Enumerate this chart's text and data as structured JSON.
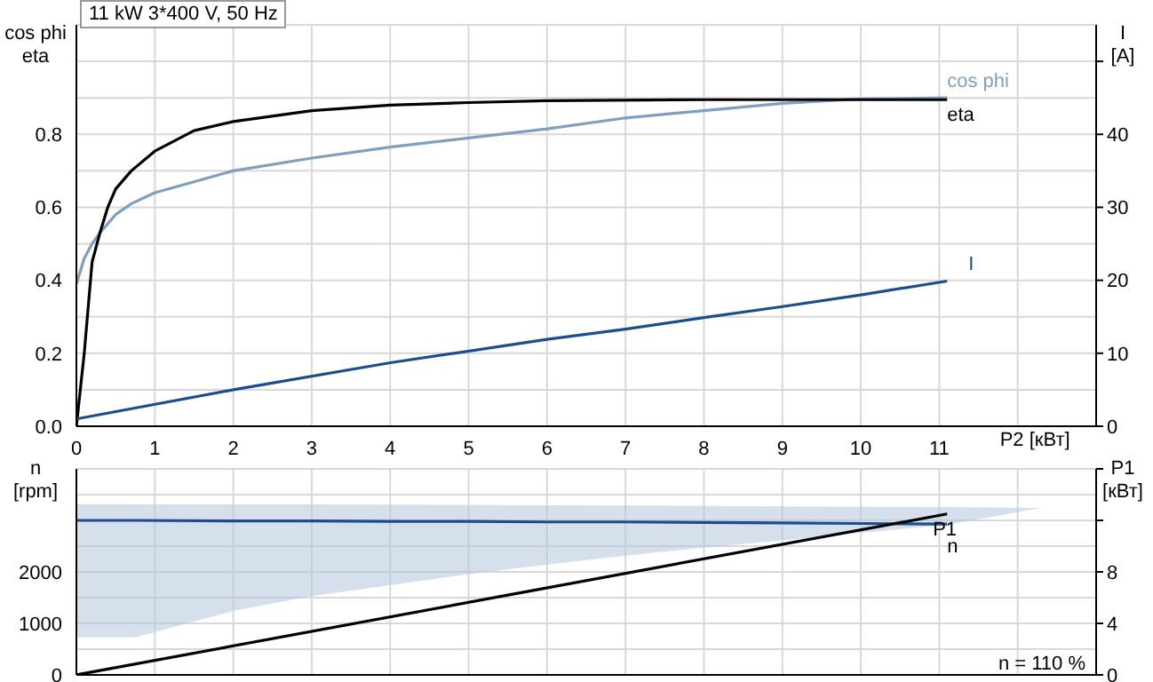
{
  "chart_data": [
    {
      "type": "line",
      "title": "11 kW  3*400 V, 50 Hz",
      "xlabel": "P2 [кВт]",
      "ylabel": "cos phi\neta",
      "y2label": "I\n[A]",
      "xlim": [
        0,
        13
      ],
      "xticks": [
        0,
        1,
        2,
        3,
        4,
        5,
        6,
        7,
        8,
        9,
        10,
        11,
        {
          "value": 12,
          "label": null
        }
      ],
      "ylim": [
        0,
        1.1
      ],
      "yticks": [
        {
          "value": 0,
          "label": "0.0"
        },
        {
          "value": 0.1,
          "label": null
        },
        {
          "value": 0.2,
          "label": "0.2"
        },
        {
          "value": 0.3,
          "label": null
        },
        {
          "value": 0.4,
          "label": "0.4"
        },
        {
          "value": 0.5,
          "label": null
        },
        {
          "value": 0.6,
          "label": "0.6"
        },
        {
          "value": 0.7,
          "label": null
        },
        {
          "value": 0.8,
          "label": "0.8"
        },
        {
          "value": 0.9,
          "label": null
        },
        {
          "value": 1.0,
          "label": null
        }
      ],
      "y2lim": [
        0,
        55
      ],
      "y2ticks": [
        0,
        10,
        20,
        30,
        40,
        {
          "value": 50,
          "label": null
        }
      ],
      "grid": true,
      "marker": "none",
      "line_style": "solid",
      "series": [
        {
          "name": "cos phi",
          "color": "#7f9fbf",
          "x": [
            0,
            0.1,
            0.2,
            0.3,
            0.5,
            0.7,
            1,
            1.5,
            2,
            3,
            4,
            5,
            6,
            7,
            8,
            9,
            10,
            11.1
          ],
          "values": [
            0.39,
            0.46,
            0.5,
            0.53,
            0.58,
            0.61,
            0.64,
            0.67,
            0.7,
            0.735,
            0.765,
            0.79,
            0.815,
            0.845,
            0.865,
            0.885,
            0.897,
            0.9
          ]
        },
        {
          "name": "eta",
          "color": "#000000",
          "x": [
            0,
            0.1,
            0.2,
            0.3,
            0.4,
            0.5,
            0.7,
            1,
            1.5,
            2,
            3,
            4,
            5,
            6,
            8,
            10,
            11.1
          ],
          "values": [
            0,
            0.2,
            0.45,
            0.53,
            0.6,
            0.65,
            0.7,
            0.754,
            0.81,
            0.835,
            0.865,
            0.88,
            0.887,
            0.892,
            0.895,
            0.895,
            0.895
          ]
        },
        {
          "name": "I",
          "color": "#1a4f8a",
          "axis": "y2",
          "x": [
            0,
            2,
            4,
            6,
            7,
            8,
            9,
            10,
            11.1
          ],
          "values": [
            1,
            5,
            8.7,
            11.9,
            13.3,
            14.9,
            16.4,
            18,
            19.9
          ]
        }
      ]
    },
    {
      "type": "line",
      "ylabel": "n\n[rpm]",
      "y2label": "P1\n[кВт]",
      "annotations": [
        "n = 110 %"
      ],
      "tick_labels": "y",
      "xlim": [
        0,
        13
      ],
      "xticks": [
        0,
        1,
        2,
        3,
        4,
        5,
        6,
        7,
        8,
        9,
        10,
        11,
        12
      ],
      "ylim": [
        0,
        4000
      ],
      "yticks": [
        0,
        {
          "value": 500,
          "label": null
        },
        1000,
        {
          "value": 1500,
          "label": null
        },
        2000,
        {
          "value": 2500,
          "label": null
        },
        {
          "value": 3000,
          "label": null
        },
        {
          "value": 3500,
          "label": null
        },
        {
          "value": 4000,
          "label": null
        }
      ],
      "y2lim": [
        0,
        16
      ],
      "y2ticks": [
        0,
        4,
        8,
        {
          "value": 12,
          "label": null
        },
        {
          "value": 16,
          "label": null
        }
      ],
      "grid": true,
      "marker": "none",
      "line_style": "solid",
      "series": [
        {
          "name": "n",
          "color": "#1a4f8a",
          "x": [
            0,
            0.75,
            2,
            3,
            4,
            5,
            6,
            7,
            8,
            9,
            10,
            11,
            11.1,
            12.3
          ],
          "values": [
            3000,
            3000,
            2990,
            2990,
            2980,
            2980,
            2970,
            2970,
            2960,
            2950,
            2940,
            2930,
            2930,
            null
          ],
          "lower": [
            730,
            730,
            1243,
            1529,
            1743,
            1957,
            2143,
            2314,
            2471,
            2614,
            2757,
            2900,
            2914,
            3243
          ],
          "upper": [
            3314,
            3314,
            3312,
            3310,
            3307,
            3300,
            3295,
            3288,
            3280,
            3272,
            3265,
            3258,
            3257,
            3243
          ]
        },
        {
          "name": "P1",
          "color": "#000000",
          "axis": "y2",
          "x": [
            0,
            5.5,
            11.1
          ],
          "values": [
            0,
            6.2,
            12.5
          ]
        }
      ]
    }
  ]
}
